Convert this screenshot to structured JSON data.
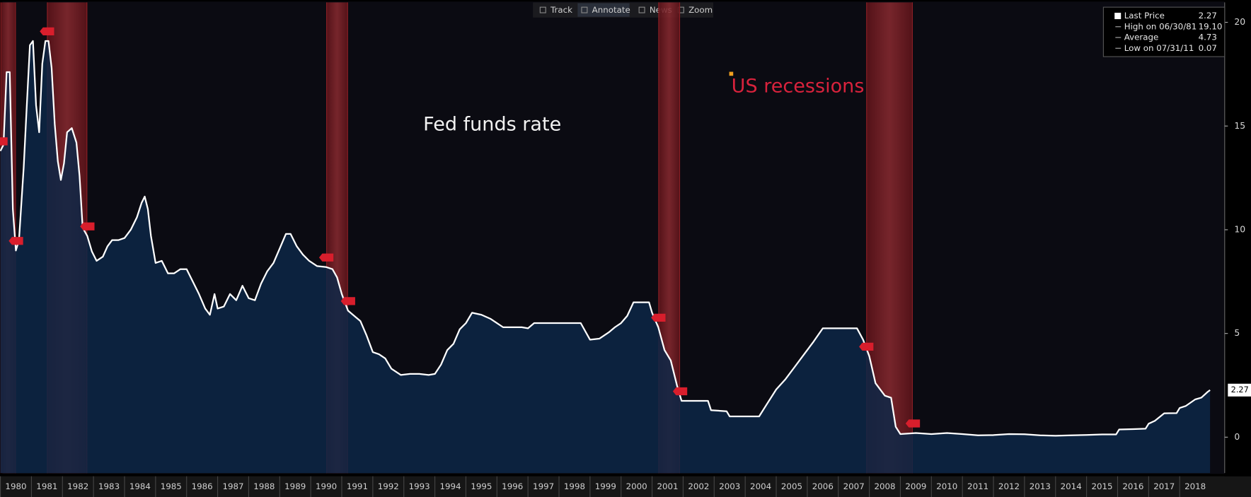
{
  "chart_data": {
    "type": "area",
    "label": "Fed funds rate",
    "recession_label": "US recessions",
    "toolbar": [
      "Track",
      "Annotate",
      "News",
      "Zoom"
    ],
    "legend": [
      {
        "label": "Last Price",
        "value": "2.27"
      },
      {
        "label": "High on 06/30/81",
        "value": "19.10"
      },
      {
        "label": "Average",
        "value": "4.73"
      },
      {
        "label": "Low on 07/31/11",
        "value": "0.07"
      }
    ],
    "recessions": [
      [
        1980.0,
        1980.5
      ],
      [
        1981.5,
        1982.8
      ],
      [
        1990.5,
        1991.2
      ],
      [
        2001.2,
        2001.9
      ],
      [
        2007.9,
        2009.4
      ]
    ],
    "recession_color": "#8a1f25",
    "x": [
      1980.0,
      1980.1,
      1980.2,
      1980.3,
      1980.4,
      1980.5,
      1980.6,
      1980.75,
      1980.85,
      1980.95,
      1981.05,
      1981.15,
      1981.25,
      1981.35,
      1981.45,
      1981.55,
      1981.65,
      1981.75,
      1981.85,
      1981.95,
      1982.05,
      1982.15,
      1982.3,
      1982.45,
      1982.55,
      1982.65,
      1982.8,
      1982.95,
      1983.1,
      1983.3,
      1983.45,
      1983.6,
      1983.8,
      1984.0,
      1984.2,
      1984.4,
      1984.55,
      1984.65,
      1984.75,
      1984.85,
      1985.0,
      1985.2,
      1985.4,
      1985.6,
      1985.8,
      1986.0,
      1986.2,
      1986.4,
      1986.6,
      1986.75,
      1986.9,
      1987.0,
      1987.2,
      1987.4,
      1987.6,
      1987.8,
      1988.0,
      1988.2,
      1988.4,
      1988.6,
      1988.8,
      1989.0,
      1989.2,
      1989.35,
      1989.55,
      1989.75,
      1989.95,
      1990.2,
      1990.5,
      1990.7,
      1990.85,
      1991.0,
      1991.2,
      1991.4,
      1991.6,
      1991.8,
      1992.0,
      1992.2,
      1992.4,
      1992.6,
      1992.9,
      1993.2,
      1993.5,
      1993.8,
      1994.0,
      1994.2,
      1994.4,
      1994.6,
      1994.8,
      1995.0,
      1995.2,
      1995.5,
      1995.8,
      1996.0,
      1996.2,
      1996.5,
      1996.8,
      1997.0,
      1997.2,
      1997.5,
      1997.8,
      1998.0,
      1998.4,
      1998.7,
      1998.85,
      1999.0,
      1999.3,
      1999.6,
      1999.8,
      2000.0,
      2000.2,
      2000.4,
      2000.6,
      2000.9,
      2001.0,
      2001.2,
      2001.4,
      2001.6,
      2001.8,
      2001.95,
      2002.3,
      2002.8,
      2002.9,
      2003.4,
      2003.5,
      2004.0,
      2004.45,
      2004.7,
      2005.0,
      2005.3,
      2005.6,
      2005.9,
      2006.2,
      2006.5,
      2007.0,
      2007.6,
      2007.8,
      2008.0,
      2008.2,
      2008.5,
      2008.7,
      2008.85,
      2009.0,
      2009.5,
      2010.0,
      2010.5,
      2011.0,
      2011.5,
      2012.0,
      2012.5,
      2013.0,
      2013.5,
      2014.0,
      2014.5,
      2015.0,
      2015.5,
      2015.95,
      2016.05,
      2016.5,
      2016.9,
      2017.0,
      2017.2,
      2017.5,
      2017.9,
      2018.0,
      2018.2,
      2018.5,
      2018.7,
      2018.9,
      2018.98
    ],
    "series": [
      {
        "name": "Last Price",
        "color": "#ffffff",
        "fill": "#0d2747",
        "values": [
          13.8,
          14.1,
          17.6,
          17.6,
          11.0,
          9.0,
          9.5,
          13.0,
          16.0,
          18.9,
          19.1,
          16.0,
          14.7,
          18.0,
          19.1,
          19.1,
          17.8,
          15.1,
          13.3,
          12.4,
          13.2,
          14.7,
          14.9,
          14.2,
          12.6,
          10.1,
          9.7,
          8.95,
          8.5,
          8.7,
          9.2,
          9.5,
          9.5,
          9.6,
          10.0,
          10.6,
          11.3,
          11.6,
          11.0,
          9.7,
          8.4,
          8.5,
          7.9,
          7.9,
          8.1,
          8.1,
          7.5,
          6.9,
          6.2,
          5.9,
          6.9,
          6.2,
          6.3,
          6.9,
          6.6,
          7.3,
          6.7,
          6.6,
          7.4,
          8.0,
          8.4,
          9.1,
          9.8,
          9.8,
          9.2,
          8.8,
          8.5,
          8.25,
          8.2,
          8.1,
          7.7,
          6.9,
          6.1,
          5.85,
          5.6,
          4.9,
          4.1,
          4.0,
          3.8,
          3.3,
          3.0,
          3.05,
          3.05,
          3.0,
          3.05,
          3.5,
          4.2,
          4.5,
          5.2,
          5.5,
          6.0,
          5.9,
          5.7,
          5.5,
          5.3,
          5.3,
          5.3,
          5.25,
          5.5,
          5.5,
          5.5,
          5.5,
          5.5,
          5.5,
          5.1,
          4.7,
          4.75,
          5.05,
          5.3,
          5.5,
          5.85,
          6.5,
          6.5,
          6.5,
          6.0,
          5.3,
          4.2,
          3.7,
          2.5,
          1.75,
          1.75,
          1.75,
          1.3,
          1.25,
          1.0,
          1.0,
          1.0,
          1.6,
          2.3,
          2.8,
          3.4,
          4.0,
          4.6,
          5.25,
          5.25,
          5.25,
          4.7,
          3.9,
          2.6,
          2.0,
          1.9,
          0.5,
          0.15,
          0.2,
          0.15,
          0.2,
          0.15,
          0.09,
          0.1,
          0.15,
          0.14,
          0.09,
          0.07,
          0.09,
          0.11,
          0.13,
          0.13,
          0.37,
          0.39,
          0.41,
          0.65,
          0.79,
          1.15,
          1.16,
          1.41,
          1.51,
          1.82,
          1.91,
          2.18,
          2.27
        ]
      }
    ],
    "xlim": [
      1980,
      2019.45
    ],
    "xticks": [
      1980,
      1981,
      1982,
      1983,
      1984,
      1985,
      1986,
      1987,
      1988,
      1989,
      1990,
      1991,
      1992,
      1993,
      1994,
      1995,
      1996,
      1997,
      1998,
      1999,
      2000,
      2001,
      2002,
      2003,
      2004,
      2005,
      2006,
      2007,
      2008,
      2009,
      2010,
      2011,
      2012,
      2013,
      2014,
      2015,
      2016,
      2017,
      2018
    ],
    "ylim": [
      -1.73,
      20.96
    ],
    "yticks": [
      0,
      5,
      10,
      15,
      20
    ]
  }
}
